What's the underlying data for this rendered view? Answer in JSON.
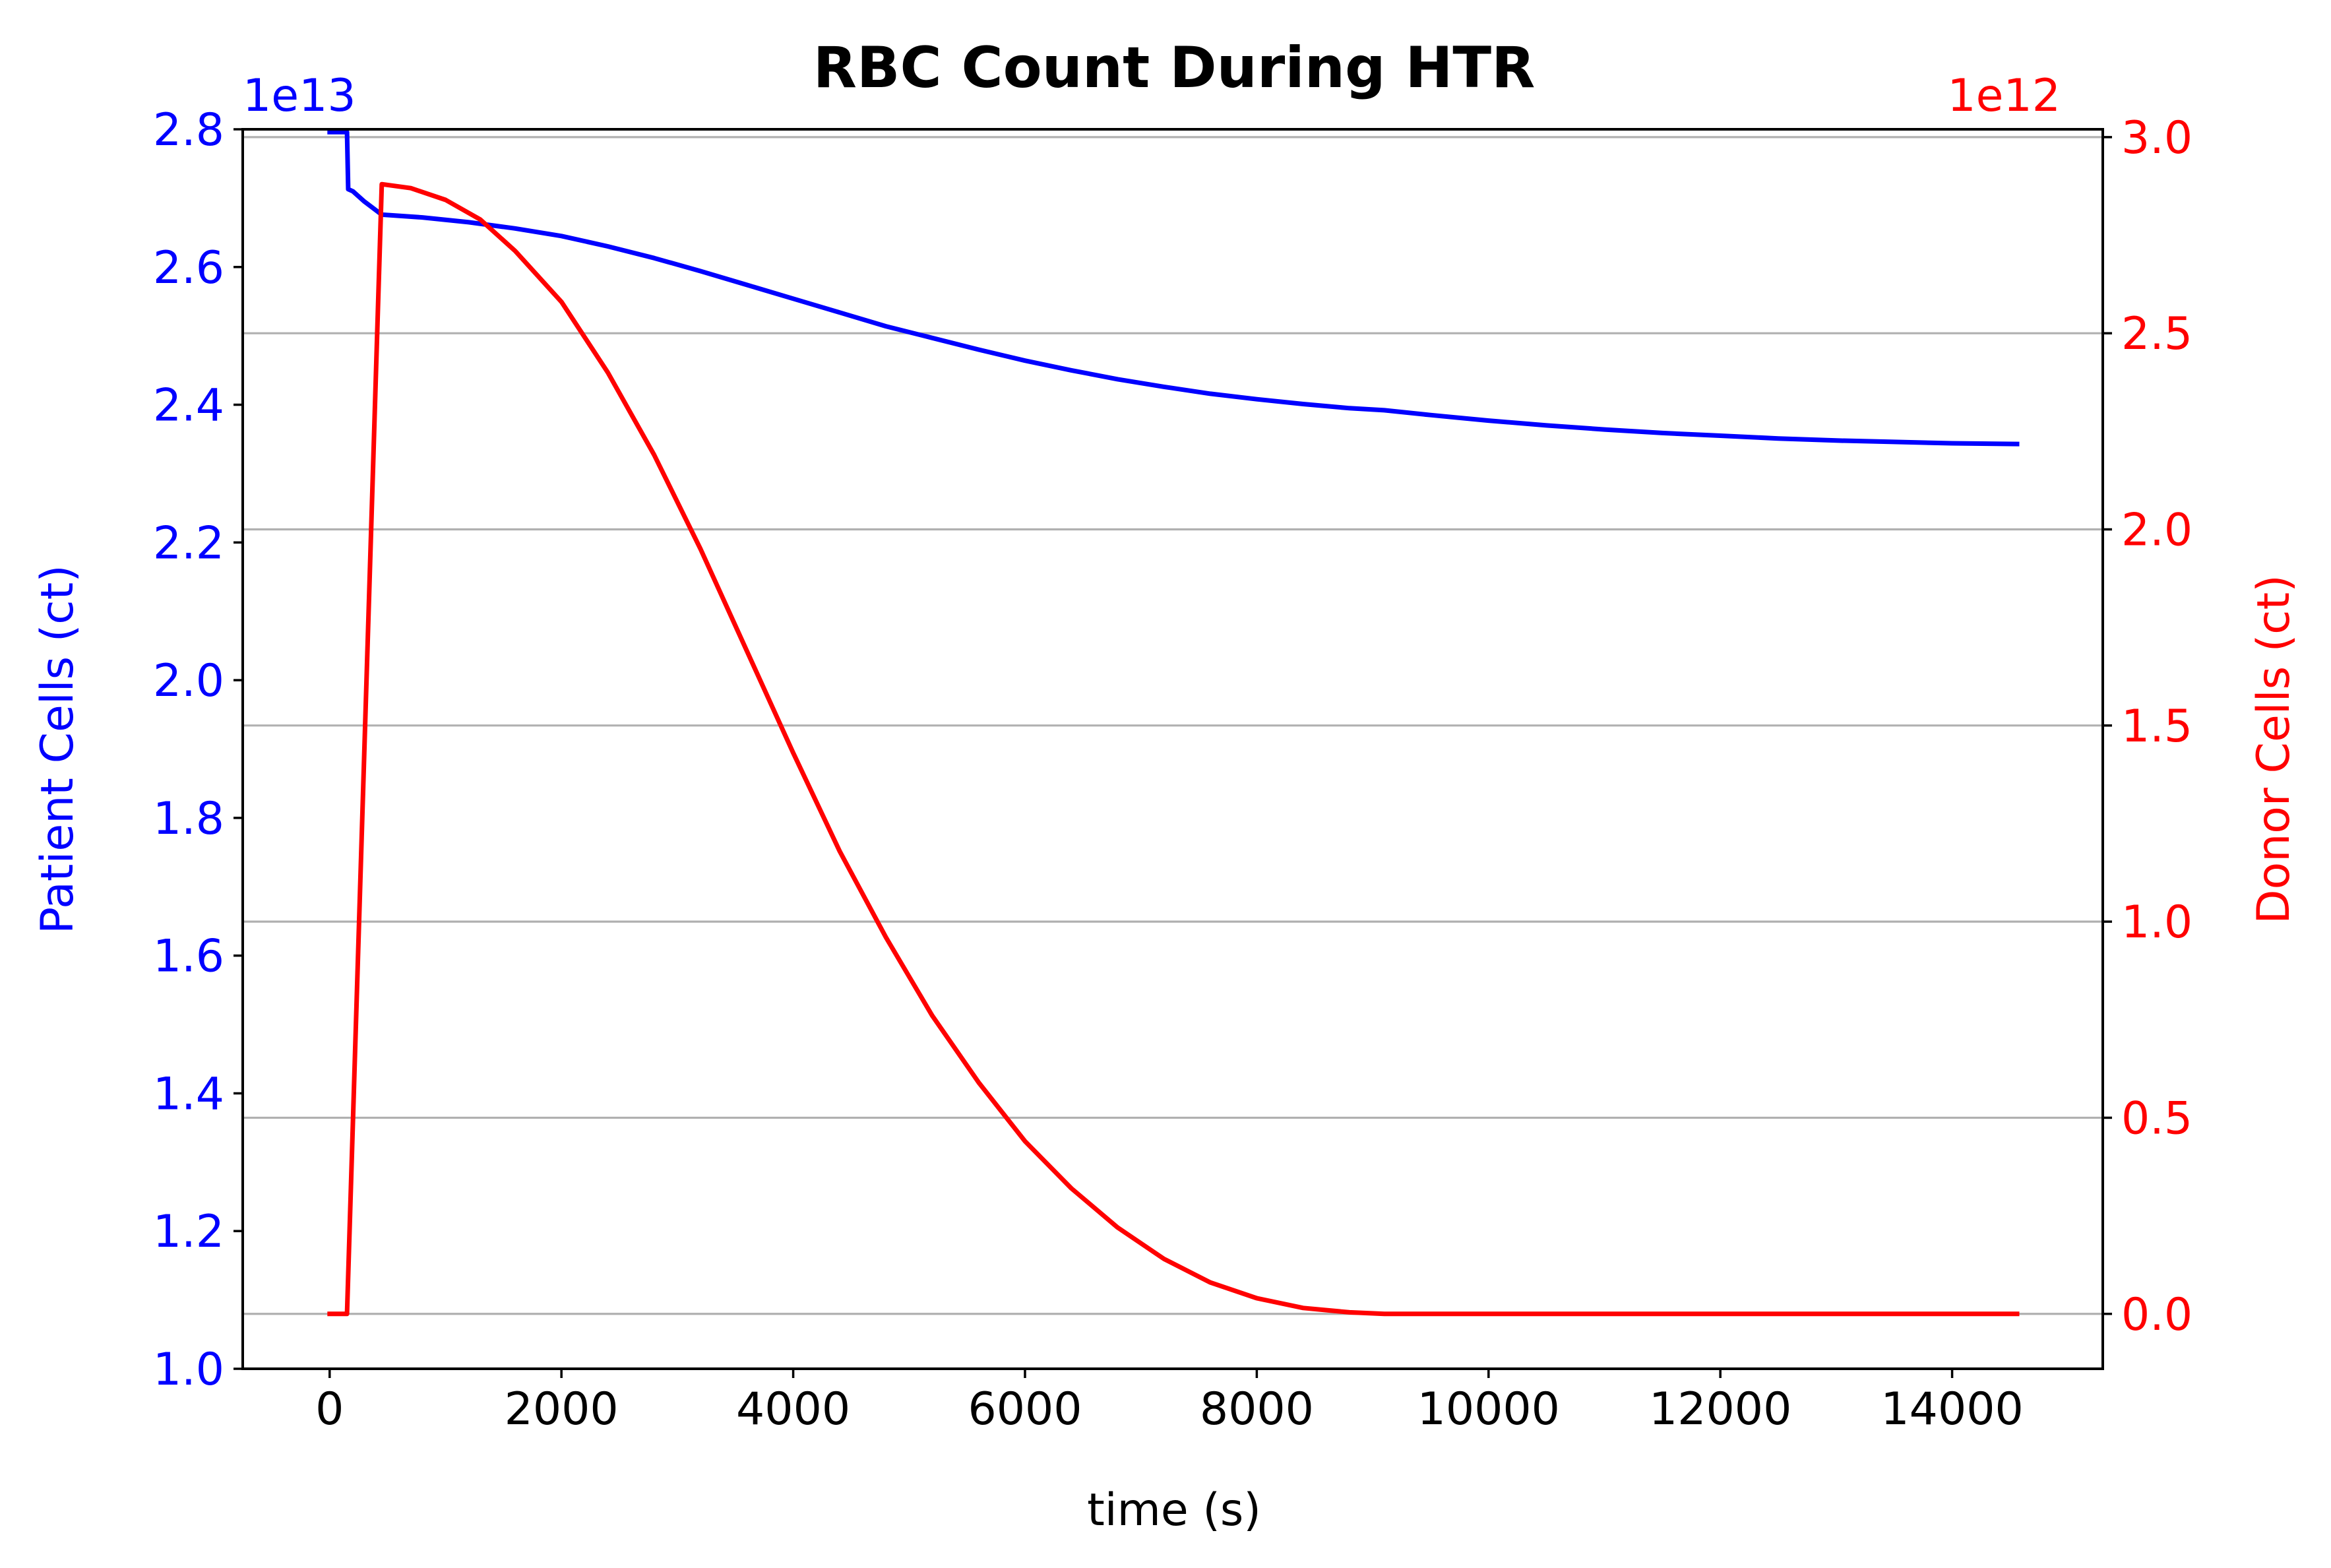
{
  "chart_data": {
    "type": "line",
    "title": "RBC Count During HTR",
    "xlabel": "time (s)",
    "ylabel_left": "Patient Cells (ct)",
    "ylabel_right": "Donor Cells (ct)",
    "left_offset_text": "1e13",
    "right_offset_text": "1e12",
    "xlim": [
      -750,
      15300
    ],
    "ylim_left": [
      1.0,
      2.8
    ],
    "ylim_right": [
      -0.14,
      3.02
    ],
    "grid": "horizontal, right axis",
    "x_ticks": [
      {
        "value": 0,
        "label": "0"
      },
      {
        "value": 2000,
        "label": "2000"
      },
      {
        "value": 4000,
        "label": "4000"
      },
      {
        "value": 6000,
        "label": "6000"
      },
      {
        "value": 8000,
        "label": "8000"
      },
      {
        "value": 10000,
        "label": "10000"
      },
      {
        "value": 12000,
        "label": "12000"
      },
      {
        "value": 14000,
        "label": "14000"
      }
    ],
    "y_left_ticks": [
      {
        "value": 1.0,
        "label": "1.0"
      },
      {
        "value": 1.2,
        "label": "1.2"
      },
      {
        "value": 1.4,
        "label": "1.4"
      },
      {
        "value": 1.6,
        "label": "1.6"
      },
      {
        "value": 1.8,
        "label": "1.8"
      },
      {
        "value": 2.0,
        "label": "2.0"
      },
      {
        "value": 2.2,
        "label": "2.2"
      },
      {
        "value": 2.4,
        "label": "2.4"
      },
      {
        "value": 2.6,
        "label": "2.6"
      },
      {
        "value": 2.8,
        "label": "2.8"
      }
    ],
    "y_right_ticks": [
      {
        "value": 0.0,
        "label": "0.0"
      },
      {
        "value": 0.5,
        "label": "0.5"
      },
      {
        "value": 1.0,
        "label": "1.0"
      },
      {
        "value": 1.5,
        "label": "1.5"
      },
      {
        "value": 2.0,
        "label": "2.0"
      },
      {
        "value": 2.5,
        "label": "2.5"
      },
      {
        "value": 3.0,
        "label": "3.0"
      }
    ],
    "series": [
      {
        "axis": "left",
        "color": "#0000ff",
        "x": [
          0,
          150,
          160,
          200,
          300,
          450,
          800,
          1200,
          1600,
          2000,
          2400,
          2800,
          3200,
          3600,
          4000,
          4400,
          4800,
          5200,
          5600,
          6000,
          6400,
          6800,
          7200,
          7600,
          8000,
          8400,
          8800,
          9100,
          9500,
          10000,
          10500,
          11000,
          11500,
          12000,
          12500,
          13000,
          13500,
          14000,
          14560
        ],
        "y": [
          2.796,
          2.796,
          2.713,
          2.71,
          2.695,
          2.676,
          2.672,
          2.665,
          2.656,
          2.645,
          2.63,
          2.613,
          2.594,
          2.574,
          2.554,
          2.534,
          2.514,
          2.497,
          2.48,
          2.464,
          2.45,
          2.437,
          2.426,
          2.416,
          2.408,
          2.401,
          2.395,
          2.392,
          2.385,
          2.377,
          2.37,
          2.364,
          2.359,
          2.355,
          2.351,
          2.348,
          2.346,
          2.344,
          2.343
        ]
      },
      {
        "axis": "right",
        "color": "#ff0000",
        "x": [
          0,
          150,
          450,
          700,
          1000,
          1300,
          1600,
          2000,
          2400,
          2800,
          3200,
          3600,
          4000,
          4400,
          4800,
          5200,
          5600,
          6000,
          6400,
          6800,
          7200,
          7600,
          8000,
          8400,
          8800,
          9100,
          9500,
          10000,
          11000,
          12000,
          13000,
          14000,
          14560
        ],
        "y": [
          0.0,
          0.0,
          2.88,
          2.87,
          2.84,
          2.79,
          2.71,
          2.58,
          2.4,
          2.19,
          1.95,
          1.69,
          1.43,
          1.18,
          0.96,
          0.76,
          0.59,
          0.44,
          0.32,
          0.22,
          0.14,
          0.08,
          0.04,
          0.015,
          0.004,
          0.0,
          0.0,
          0.0,
          0.0,
          0.0,
          0.0,
          0.0,
          0.0
        ]
      }
    ]
  }
}
